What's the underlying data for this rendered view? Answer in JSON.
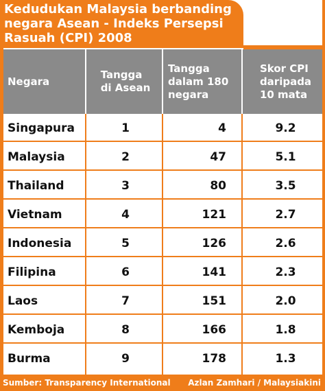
{
  "title": {
    "line1": "Kedudukan Malaysia berbanding",
    "line2": "negara Asean - Indeks Persepsi",
    "line3": "Rasuah (CPI) 2008"
  },
  "headers": {
    "negara": "Negara",
    "tangga_asean": "Tangga\ndi Asean",
    "tangga_180": "Tangga\ndalam 180\nnegara",
    "skor": "Skor CPI\ndaripada\n10 mata"
  },
  "rows": [
    {
      "negara": "Singapura",
      "asean": "1",
      "rank": "4",
      "score": "9.2"
    },
    {
      "negara": "Malaysia",
      "asean": "2",
      "rank": "47",
      "score": "5.1"
    },
    {
      "negara": "Thailand",
      "asean": "3",
      "rank": "80",
      "score": "3.5"
    },
    {
      "negara": "Vietnam",
      "asean": "4",
      "rank": "121",
      "score": "2.7"
    },
    {
      "negara": "Indonesia",
      "asean": "5",
      "rank": "126",
      "score": "2.6"
    },
    {
      "negara": "Filipina",
      "asean": "6",
      "rank": "141",
      "score": "2.3"
    },
    {
      "negara": "Laos",
      "asean": "7",
      "rank": "151",
      "score": "2.0"
    },
    {
      "negara": "Kemboja",
      "asean": "8",
      "rank": "166",
      "score": "1.8"
    },
    {
      "negara": "Burma",
      "asean": "9",
      "rank": "178",
      "score": "1.3"
    }
  ],
  "footer": {
    "source": "Sumber: Transparency International",
    "credit": "Azlan Zamhari / Malaysiakini"
  },
  "colors": {
    "accent": "#ef7d1a",
    "header_bg": "#8a8a8a"
  }
}
